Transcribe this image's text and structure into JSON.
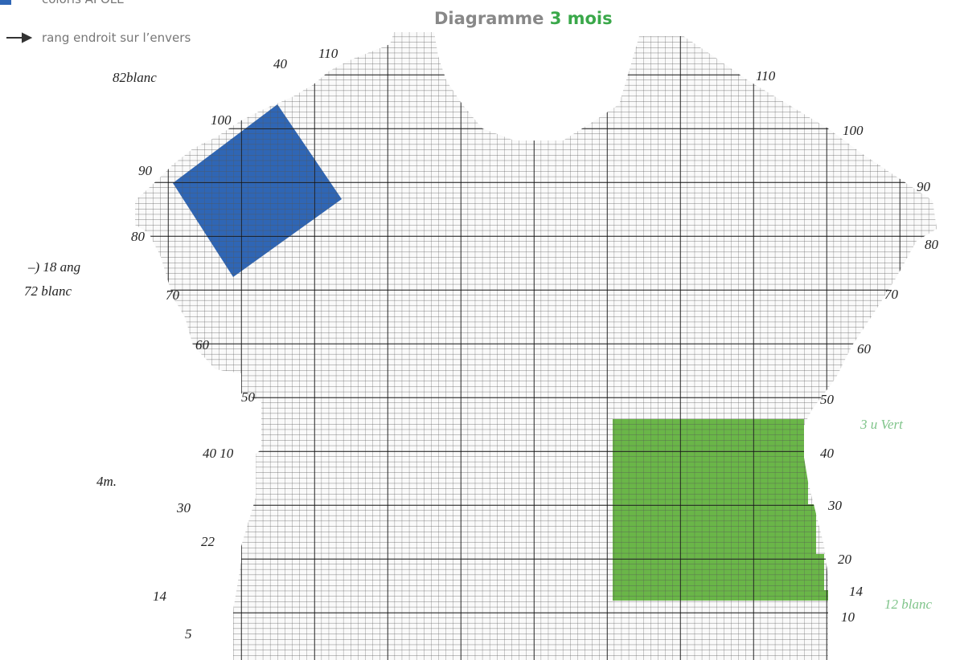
{
  "legend": {
    "color_label": "coloris APOLE",
    "arrow_label": "rang endroit sur l’envers"
  },
  "title": {
    "text": "Diagramme",
    "highlight": "3 mois"
  },
  "annotations": {
    "left": [
      "82blanc",
      "–) 18 ang",
      "72 blanc",
      "4m.",
      "80",
      "70",
      "60",
      "50",
      "40 10",
      "30",
      "22",
      "14",
      "5",
      "90",
      "100",
      "40",
      "110"
    ],
    "right": [
      "110",
      "100",
      "90",
      "80",
      "70",
      "60",
      "50",
      "40",
      "30",
      "20",
      "14",
      "10",
      "3 u Vert",
      "12 blanc"
    ]
  }
}
